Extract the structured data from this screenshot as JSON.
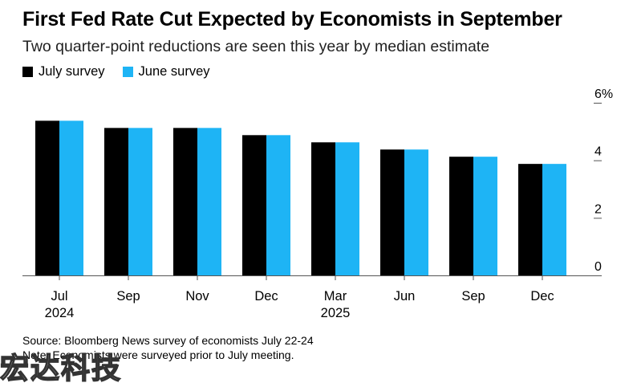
{
  "title": "First Fed Rate Cut Expected by Economists in September",
  "subtitle": "Two quarter-point reductions are seen this year by median estimate",
  "legend": [
    {
      "label": "July survey",
      "color": "#000000"
    },
    {
      "label": "June survey",
      "color": "#1eb4f5"
    }
  ],
  "source": "Source: Bloomberg News survey of economists July 22-24",
  "note": "Note: Economists were surveyed prior to July meeting.",
  "watermark": "宏达科技",
  "chart_data": {
    "type": "bar",
    "categories": [
      {
        "label": "Jul",
        "year": "2024"
      },
      {
        "label": "Sep",
        "year": ""
      },
      {
        "label": "Nov",
        "year": ""
      },
      {
        "label": "Dec",
        "year": ""
      },
      {
        "label": "Mar",
        "year": "2025"
      },
      {
        "label": "Jun",
        "year": ""
      },
      {
        "label": "Sep",
        "year": ""
      },
      {
        "label": "Dec",
        "year": ""
      }
    ],
    "series": [
      {
        "name": "July survey",
        "color": "#000000",
        "values": [
          5.375,
          5.125,
          5.125,
          4.875,
          4.625,
          4.375,
          4.125,
          3.875
        ]
      },
      {
        "name": "June survey",
        "color": "#1eb4f5",
        "values": [
          5.375,
          5.125,
          5.125,
          4.875,
          4.625,
          4.375,
          4.125,
          3.875
        ]
      }
    ],
    "ylim": [
      0,
      6
    ],
    "yticks": [
      {
        "value": 0,
        "label": "0"
      },
      {
        "value": 2,
        "label": "2"
      },
      {
        "value": 4,
        "label": "4"
      },
      {
        "value": 6,
        "label": "6%"
      }
    ],
    "y_axis_side": "right",
    "grid": false
  }
}
